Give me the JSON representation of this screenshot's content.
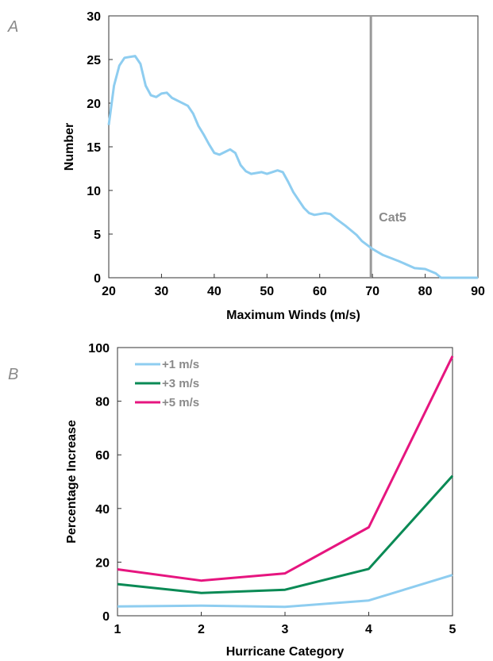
{
  "chart_data": [
    {
      "panel": "A",
      "type": "line",
      "xlabel": "Maximum Winds (m/s)",
      "ylabel": "Number",
      "xlim": [
        20,
        90
      ],
      "ylim": [
        0,
        30
      ],
      "xticks": [
        20,
        30,
        40,
        50,
        60,
        70,
        80,
        90
      ],
      "yticks": [
        0,
        5,
        10,
        15,
        20,
        25,
        30
      ],
      "grid": false,
      "series": [
        {
          "color": "#8ecdf0",
          "x": [
            20,
            21,
            22,
            23,
            25,
            26,
            27,
            28,
            29,
            30,
            31,
            32,
            35,
            36,
            37,
            38,
            39,
            40,
            41,
            42,
            43,
            44,
            45,
            46,
            47,
            48,
            49,
            50,
            51,
            52,
            53,
            54,
            55,
            56,
            57,
            58,
            59,
            60,
            61,
            62,
            63,
            65,
            67,
            68,
            70,
            72,
            75,
            78,
            80,
            82,
            83,
            90
          ],
          "y": [
            17.5,
            22,
            24.3,
            25.2,
            25.4,
            24.5,
            22,
            20.9,
            20.7,
            21.1,
            21.2,
            20.6,
            19.7,
            18.8,
            17.4,
            16.4,
            15.3,
            14.3,
            14.1,
            14.4,
            14.7,
            14.3,
            12.9,
            12.2,
            11.9,
            12.0,
            12.1,
            11.9,
            12.1,
            12.3,
            12.1,
            11.0,
            9.8,
            8.9,
            8.0,
            7.4,
            7.2,
            7.3,
            7.4,
            7.3,
            6.8,
            5.9,
            4.9,
            4.2,
            3.3,
            2.6,
            1.9,
            1.1,
            1.0,
            0.5,
            0.0,
            0.0
          ]
        }
      ],
      "annotations": [
        {
          "type": "vline",
          "x": 69.7,
          "color": "#999999",
          "label": "Cat5",
          "label_y": 7
        }
      ]
    },
    {
      "panel": "B",
      "type": "line",
      "xlabel": "Hurricane Category",
      "ylabel": "Percentage Increase",
      "xlim": [
        1,
        5
      ],
      "ylim": [
        0,
        100
      ],
      "xticks": [
        1,
        2,
        3,
        4,
        5
      ],
      "yticks": [
        0,
        20,
        40,
        60,
        80,
        100
      ],
      "grid": false,
      "legend": "top-left",
      "categories": [
        1,
        2,
        3,
        4,
        5
      ],
      "series": [
        {
          "name": "+1 m/s",
          "color": "#8ecdf0",
          "values": [
            3.5,
            3.8,
            3.3,
            5.7,
            15.2
          ]
        },
        {
          "name": "+3 m/s",
          "color": "#0a8a55",
          "values": [
            11.8,
            8.5,
            9.7,
            17.5,
            52.2
          ]
        },
        {
          "name": "+5 m/s",
          "color": "#e6157f",
          "values": [
            17.3,
            13.1,
            15.8,
            33.0,
            96.8
          ]
        }
      ]
    }
  ]
}
